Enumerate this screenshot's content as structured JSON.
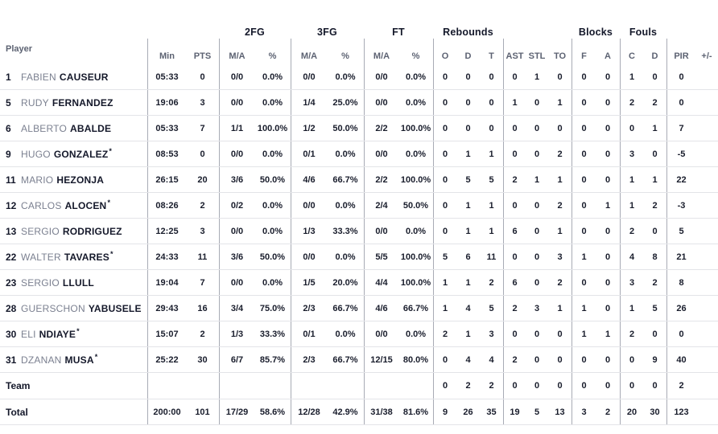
{
  "colors": {
    "background": "#ffffff",
    "text_dark": "#14182a",
    "text_gray": "#5c6272",
    "first_name_gray": "#7b8090",
    "horizontal_line": "#e3e4e8",
    "vertical_line": "#a8abb5"
  },
  "table": {
    "starter_symbol": "*",
    "groups": [
      {
        "label": "2FG"
      },
      {
        "label": "3FG"
      },
      {
        "label": "FT"
      },
      {
        "label": "Rebounds"
      },
      {
        "label": "Blocks"
      },
      {
        "label": "Fouls"
      }
    ],
    "sub_headers": [
      "Player",
      "Min",
      "PTS",
      "M/A",
      "%",
      "M/A",
      "%",
      "M/A",
      "%",
      "O",
      "D",
      "T",
      "AST",
      "STL",
      "TO",
      "F",
      "A",
      "C",
      "D",
      "PIR",
      "+/-"
    ],
    "stat_keys": [
      "min",
      "pts",
      "2fg-ma",
      "2fg-pct",
      "3fg-ma",
      "3fg-pct",
      "ft-ma",
      "ft-pct",
      "reb-o",
      "reb-d",
      "reb-t",
      "ast",
      "stl",
      "to",
      "blk-f",
      "blk-a",
      "foul-c",
      "foul-d",
      "pir",
      "plus-minus"
    ],
    "rows": [
      {
        "number": "1",
        "first": "FABIEN",
        "last": "CAUSEUR",
        "starter": false,
        "stats": [
          "05:33",
          "0",
          "0/0",
          "0.0%",
          "0/0",
          "0.0%",
          "0/0",
          "0.0%",
          "0",
          "0",
          "0",
          "0",
          "1",
          "0",
          "0",
          "0",
          "1",
          "0",
          "0",
          ""
        ]
      },
      {
        "number": "5",
        "first": "RUDY",
        "last": "FERNANDEZ",
        "starter": false,
        "stats": [
          "19:06",
          "3",
          "0/0",
          "0.0%",
          "1/4",
          "25.0%",
          "0/0",
          "0.0%",
          "0",
          "0",
          "0",
          "1",
          "0",
          "1",
          "0",
          "0",
          "2",
          "2",
          "0",
          ""
        ]
      },
      {
        "number": "6",
        "first": "ALBERTO",
        "last": "ABALDE",
        "starter": false,
        "stats": [
          "05:33",
          "7",
          "1/1",
          "100.0%",
          "1/2",
          "50.0%",
          "2/2",
          "100.0%",
          "0",
          "0",
          "0",
          "0",
          "0",
          "0",
          "0",
          "0",
          "0",
          "1",
          "7",
          ""
        ]
      },
      {
        "number": "9",
        "first": "HUGO",
        "last": "GONZALEZ",
        "starter": true,
        "stats": [
          "08:53",
          "0",
          "0/0",
          "0.0%",
          "0/1",
          "0.0%",
          "0/0",
          "0.0%",
          "0",
          "1",
          "1",
          "0",
          "0",
          "2",
          "0",
          "0",
          "3",
          "0",
          "-5",
          ""
        ]
      },
      {
        "number": "11",
        "first": "MARIO",
        "last": "HEZONJA",
        "starter": false,
        "stats": [
          "26:15",
          "20",
          "3/6",
          "50.0%",
          "4/6",
          "66.7%",
          "2/2",
          "100.0%",
          "0",
          "5",
          "5",
          "2",
          "1",
          "1",
          "0",
          "0",
          "1",
          "1",
          "22",
          ""
        ]
      },
      {
        "number": "12",
        "first": "CARLOS",
        "last": "ALOCEN",
        "starter": true,
        "stats": [
          "08:26",
          "2",
          "0/2",
          "0.0%",
          "0/0",
          "0.0%",
          "2/4",
          "50.0%",
          "0",
          "1",
          "1",
          "0",
          "0",
          "2",
          "0",
          "1",
          "1",
          "2",
          "-3",
          ""
        ]
      },
      {
        "number": "13",
        "first": "SERGIO",
        "last": "RODRIGUEZ",
        "starter": false,
        "stats": [
          "12:25",
          "3",
          "0/0",
          "0.0%",
          "1/3",
          "33.3%",
          "0/0",
          "0.0%",
          "0",
          "1",
          "1",
          "6",
          "0",
          "1",
          "0",
          "0",
          "2",
          "0",
          "5",
          ""
        ]
      },
      {
        "number": "22",
        "first": "WALTER",
        "last": "TAVARES",
        "starter": true,
        "stats": [
          "24:33",
          "11",
          "3/6",
          "50.0%",
          "0/0",
          "0.0%",
          "5/5",
          "100.0%",
          "5",
          "6",
          "11",
          "0",
          "0",
          "3",
          "1",
          "0",
          "4",
          "8",
          "21",
          ""
        ]
      },
      {
        "number": "23",
        "first": "SERGIO",
        "last": "LLULL",
        "starter": false,
        "stats": [
          "19:04",
          "7",
          "0/0",
          "0.0%",
          "1/5",
          "20.0%",
          "4/4",
          "100.0%",
          "1",
          "1",
          "2",
          "6",
          "0",
          "2",
          "0",
          "0",
          "3",
          "2",
          "8",
          ""
        ]
      },
      {
        "number": "28",
        "first": "GUERSCHON",
        "last": "YABUSELE",
        "starter": false,
        "stats": [
          "29:43",
          "16",
          "3/4",
          "75.0%",
          "2/3",
          "66.7%",
          "4/6",
          "66.7%",
          "1",
          "4",
          "5",
          "2",
          "3",
          "1",
          "1",
          "0",
          "1",
          "5",
          "26",
          ""
        ]
      },
      {
        "number": "30",
        "first": "ELI",
        "last": "NDIAYE",
        "starter": true,
        "stats": [
          "15:07",
          "2",
          "1/3",
          "33.3%",
          "0/1",
          "0.0%",
          "0/0",
          "0.0%",
          "2",
          "1",
          "3",
          "0",
          "0",
          "0",
          "1",
          "1",
          "2",
          "0",
          "0",
          ""
        ]
      },
      {
        "number": "31",
        "first": "DZANAN",
        "last": "MUSA",
        "starter": true,
        "stats": [
          "25:22",
          "30",
          "6/7",
          "85.7%",
          "2/3",
          "66.7%",
          "12/15",
          "80.0%",
          "0",
          "4",
          "4",
          "2",
          "0",
          "0",
          "0",
          "0",
          "0",
          "9",
          "40",
          ""
        ]
      }
    ],
    "team_row": {
      "label": "Team",
      "stats": [
        "",
        "",
        "",
        "",
        "",
        "",
        "",
        "",
        "0",
        "2",
        "2",
        "0",
        "0",
        "0",
        "0",
        "0",
        "0",
        "0",
        "2",
        ""
      ]
    },
    "total_row": {
      "label": "Total",
      "stats": [
        "200:00",
        "101",
        "17/29",
        "58.6%",
        "12/28",
        "42.9%",
        "31/38",
        "81.6%",
        "9",
        "26",
        "35",
        "19",
        "5",
        "13",
        "3",
        "2",
        "20",
        "30",
        "123",
        ""
      ]
    }
  }
}
